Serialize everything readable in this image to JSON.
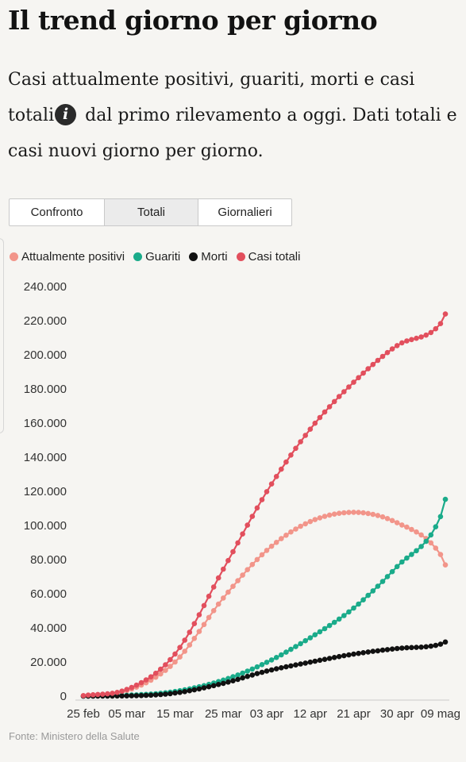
{
  "title": "Il trend giorno per giorno",
  "description": {
    "part1": "Casi attualmente positivi, guariti, morti e casi totali",
    "info_icon": "i",
    "part2": " dal primo rilevamento a oggi. Dati totali e casi nuovi giorno per giorno."
  },
  "tabs": [
    {
      "label": "Confronto",
      "active": false
    },
    {
      "label": "Totali",
      "active": true
    },
    {
      "label": "Giornalieri",
      "active": false
    }
  ],
  "source": "Fonte: Ministero della Salute",
  "chart_data": {
    "type": "line",
    "x_start": "2020-02-25",
    "x_ticks": [
      "25 feb",
      "05 mar",
      "15 mar",
      "25 mar",
      "03 apr",
      "12 apr",
      "21 apr",
      "30 apr",
      "09 mag"
    ],
    "ylim": [
      0,
      240000
    ],
    "y_ticks": [
      "0",
      "20.000",
      "40.000",
      "60.000",
      "80.000",
      "100.000",
      "120.000",
      "140.000",
      "160.000",
      "180.000",
      "200.000",
      "220.000",
      "240.000"
    ],
    "grid": false,
    "legend_position": "top-left",
    "marker": "dot",
    "series": [
      {
        "name": "Attualmente positivi",
        "color": "#f2958a",
        "points": [
          [
            "25 feb",
            300
          ],
          [
            "05 mar",
            3200
          ],
          [
            "15 mar",
            20000
          ],
          [
            "25 mar",
            57500
          ],
          [
            "03 apr",
            85400
          ],
          [
            "12 apr",
            102300
          ],
          [
            "21 apr",
            107700
          ],
          [
            "30 apr",
            101600
          ],
          [
            "09 mag",
            83000
          ],
          [
            "10 mag",
            76900
          ]
        ]
      },
      {
        "name": "Guariti",
        "color": "#1aab8a",
        "points": [
          [
            "25 feb",
            1
          ],
          [
            "05 mar",
            500
          ],
          [
            "15 mar",
            2700
          ],
          [
            "25 mar",
            9400
          ],
          [
            "03 apr",
            19800
          ],
          [
            "12 apr",
            34200
          ],
          [
            "21 apr",
            51600
          ],
          [
            "30 apr",
            75900
          ],
          [
            "09 mag",
            105200
          ],
          [
            "10 mag",
            115300
          ]
        ]
      },
      {
        "name": "Morti",
        "color": "#111111",
        "points": [
          [
            "25 feb",
            10
          ],
          [
            "05 mar",
            150
          ],
          [
            "15 mar",
            1800
          ],
          [
            "25 mar",
            7500
          ],
          [
            "03 apr",
            14700
          ],
          [
            "12 apr",
            19900
          ],
          [
            "21 apr",
            24600
          ],
          [
            "30 apr",
            27900
          ],
          [
            "09 mag",
            30400
          ],
          [
            "10 mag",
            31700
          ]
        ]
      },
      {
        "name": "Casi totali",
        "color": "#e24f5d",
        "points": [
          [
            "25 feb",
            300
          ],
          [
            "05 mar",
            3900
          ],
          [
            "15 mar",
            24700
          ],
          [
            "25 mar",
            74400
          ],
          [
            "03 apr",
            119800
          ],
          [
            "12 apr",
            156400
          ],
          [
            "21 apr",
            183900
          ],
          [
            "30 apr",
            205400
          ],
          [
            "09 mag",
            218300
          ],
          [
            "10 mag",
            223900
          ]
        ]
      }
    ]
  }
}
